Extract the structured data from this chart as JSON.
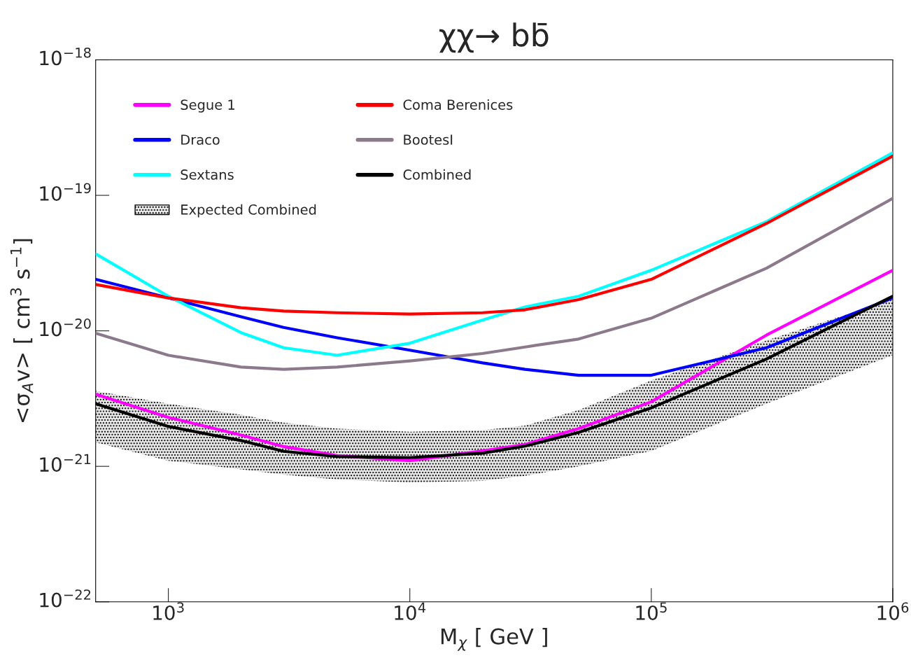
{
  "chart_data": {
    "type": "line",
    "title": "χχ→ bb̄",
    "xlabel": "M$_{χ}$ [ GeV ]",
    "ylabel": "<σ$_{A}$v> [ cm$^{3}$ s$^{−1}$]",
    "log": "xy",
    "grid": false,
    "legend": "top left",
    "xlim": [
      500,
      1000000
    ],
    "ylim": [
      1e-22,
      1e-18
    ],
    "xticks": [
      {
        "value": 1000,
        "label": "10$^{3}$"
      },
      {
        "value": 10000,
        "label": "10$^{4}$"
      },
      {
        "value": 100000,
        "label": "10$^{5}$"
      },
      {
        "value": 1000000,
        "label": "10$^{6}$"
      }
    ],
    "yticks": [
      {
        "value": 1e-22,
        "label": "10$^{−22}$"
      },
      {
        "value": 1e-21,
        "label": "10$^{−21}$"
      },
      {
        "value": 1e-20,
        "label": "10$^{−20}$"
      },
      {
        "value": 1e-19,
        "label": "10$^{−19}$"
      },
      {
        "value": 1e-18,
        "label": "10$^{−18}$"
      }
    ],
    "x": [
      500,
      1000,
      2000,
      3000,
      5000,
      10000,
      20000,
      30000,
      50000,
      100000,
      300000,
      1000000
    ],
    "series": [
      {
        "name": "Segue 1",
        "color": "#ff00ff",
        "values": [
          3.4e-21,
          2.3e-21,
          1.7e-21,
          1.4e-21,
          1.2e-21,
          1.1e-21,
          1.3e-21,
          1.45e-21,
          1.9e-21,
          3e-21,
          9.3e-21,
          2.8e-20
        ]
      },
      {
        "name": "Draco",
        "color": "#0000ff",
        "values": [
          2.4e-20,
          1.75e-20,
          1.27e-20,
          1.06e-20,
          8.9e-21,
          7.2e-21,
          5.8e-21,
          5.2e-21,
          4.7e-21,
          4.7e-21,
          7.5e-21,
          1.75e-20
        ]
      },
      {
        "name": "Sextans",
        "color": "#00ffff",
        "values": [
          3.7e-20,
          1.8e-20,
          9.7e-21,
          7.5e-21,
          6.6e-21,
          8.1e-21,
          1.2e-20,
          1.5e-20,
          1.8e-20,
          2.8e-20,
          6.4e-20,
          2.06e-19
        ]
      },
      {
        "name": "Expected Combined",
        "type": "area",
        "color": "#000000",
        "values": [
          null,
          null,
          null,
          null,
          null,
          null,
          null,
          null,
          null,
          null,
          null,
          null
        ],
        "lower": [
          1.5e-21,
          1.1e-21,
          9.5e-22,
          8.7e-22,
          8e-22,
          7.6e-22,
          7.8e-22,
          8.5e-22,
          1e-21,
          1.3e-21,
          2.9e-21,
          6.6e-21
        ],
        "upper": [
          3.6e-21,
          2.9e-21,
          2.4e-21,
          2.1e-21,
          1.9e-21,
          1.8e-21,
          1.85e-21,
          2e-21,
          2.6e-21,
          4.3e-21,
          8.5e-21,
          1.7e-20
        ]
      },
      {
        "name": "Coma Berenices",
        "color": "#ff0000",
        "values": [
          2.2e-20,
          1.75e-20,
          1.48e-20,
          1.4e-20,
          1.36e-20,
          1.33e-20,
          1.36e-20,
          1.43e-20,
          1.7e-20,
          2.4e-20,
          6.2e-20,
          1.95e-19
        ]
      },
      {
        "name": "BootesI",
        "color": "#8c7a8c",
        "values": [
          9.6e-21,
          6.6e-21,
          5.4e-21,
          5.2e-21,
          5.4e-21,
          6e-21,
          6.8e-21,
          7.6e-21,
          8.7e-21,
          1.24e-20,
          2.9e-20,
          9.5e-20
        ]
      },
      {
        "name": "Combined",
        "color": "#000000",
        "values": [
          2.9e-21,
          1.97e-21,
          1.55e-21,
          1.29e-21,
          1.18e-21,
          1.16e-21,
          1.25e-21,
          1.41e-21,
          1.78e-21,
          2.7e-21,
          6.2e-21,
          1.8e-20
        ]
      }
    ]
  }
}
